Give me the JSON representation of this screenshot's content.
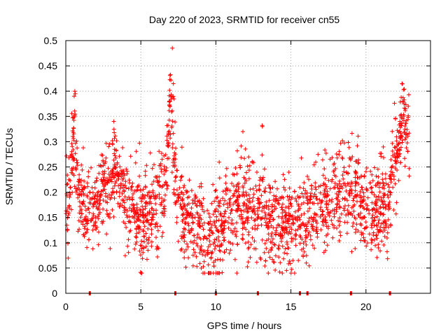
{
  "chart_data": {
    "type": "scatter",
    "title": "Day 220 of 2023, SRMTID for receiver cn55",
    "xlabel": "GPS time / hours",
    "ylabel": "SRMTID / TECUs",
    "xlim": [
      0,
      24.3
    ],
    "ylim": [
      0,
      0.5
    ],
    "xticks": [
      0,
      5,
      10,
      15,
      20
    ],
    "xtick_labels": [
      "0",
      "5",
      "10",
      "15",
      "20"
    ],
    "yticks": [
      0,
      0.05,
      0.1,
      0.15,
      0.2,
      0.25,
      0.3,
      0.35,
      0.4,
      0.45,
      0.5
    ],
    "ytick_labels": [
      "0",
      "0.05",
      "0.1",
      "0.15",
      "0.2",
      "0.25",
      "0.3",
      "0.35",
      "0.4",
      "0.45",
      "0.5"
    ],
    "grid": true,
    "marker": "+",
    "color": "#ff0000",
    "series": [
      {
        "name": "SRMTID",
        "trend": {
          "x": [
            0,
            0.3,
            0.5,
            0.7,
            1.0,
            1.5,
            2.0,
            2.5,
            3.0,
            3.3,
            3.6,
            4.0,
            4.5,
            5.0,
            5.5,
            6.0,
            6.5,
            6.8,
            7.0,
            7.2,
            7.5,
            8.0,
            8.5,
            9.0,
            9.5,
            10.0,
            10.5,
            11.0,
            11.5,
            12.0,
            12.5,
            13.0,
            13.5,
            14.0,
            14.5,
            15.0,
            15.5,
            16.0,
            16.5,
            17.0,
            17.5,
            18.0,
            18.5,
            19.0,
            19.5,
            20.0,
            20.5,
            21.0,
            21.5,
            22.0,
            22.3,
            22.6,
            22.9
          ],
          "y": [
            0.17,
            0.2,
            0.3,
            0.22,
            0.17,
            0.16,
            0.18,
            0.2,
            0.22,
            0.24,
            0.21,
            0.19,
            0.17,
            0.15,
            0.15,
            0.17,
            0.19,
            0.28,
            0.38,
            0.22,
            0.17,
            0.15,
            0.14,
            0.13,
            0.09,
            0.12,
            0.15,
            0.17,
            0.19,
            0.16,
            0.15,
            0.16,
            0.14,
            0.13,
            0.14,
            0.13,
            0.13,
            0.15,
            0.16,
            0.17,
            0.18,
            0.19,
            0.2,
            0.2,
            0.18,
            0.16,
            0.17,
            0.17,
            0.19,
            0.27,
            0.3,
            0.32,
            0.3
          ]
        },
        "spread": 0.045,
        "n_points": 2200,
        "x_range": [
          0,
          22.9
        ],
        "peaks": [
          {
            "x": 0.6,
            "y": 0.4
          },
          {
            "x": 3.2,
            "y": 0.34
          },
          {
            "x": 7.1,
            "y": 0.485
          },
          {
            "x": 11.8,
            "y": 0.32
          },
          {
            "x": 13.1,
            "y": 0.33
          },
          {
            "x": 22.4,
            "y": 0.415
          }
        ],
        "zero_markers": [
          1.6,
          7.3,
          10.0,
          12.8,
          15.6,
          16.1,
          19.0,
          21.6
        ]
      }
    ]
  }
}
